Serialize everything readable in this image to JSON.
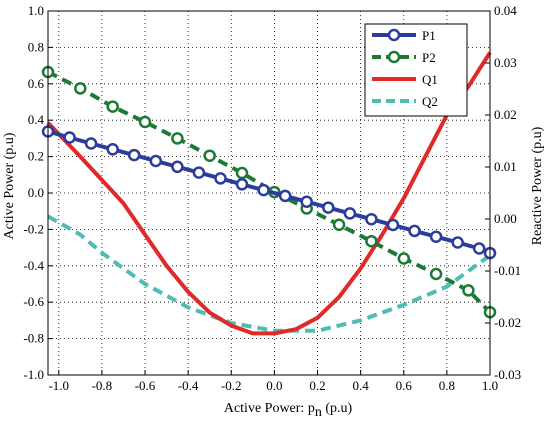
{
  "chart_data": {
    "type": "line",
    "xlabel": "Active Power: p",
    "xlabel_subscript": "n",
    "xlabel_unit": " (p.u)",
    "ylabel": "Active Power (p.u)",
    "y2label": "Reactive Power (p.u)",
    "xlim": [
      -1.05,
      1.0
    ],
    "ylim": [
      -1.0,
      1.0
    ],
    "y2lim": [
      -0.03,
      0.04
    ],
    "x_ticks": [
      -1.0,
      -0.8,
      -0.6,
      -0.4,
      -0.2,
      0.0,
      0.2,
      0.4,
      0.6,
      0.8,
      1.0
    ],
    "x_tick_labels": [
      "-1.0",
      "-0.8",
      "-0.6",
      "-0.4",
      "-0.2",
      "0.0",
      "0.2",
      "0.4",
      "0.6",
      "0.8",
      "1.0"
    ],
    "y_ticks": [
      -1.0,
      -0.8,
      -0.6,
      -0.4,
      -0.2,
      0.0,
      0.2,
      0.4,
      0.6,
      0.8,
      1.0
    ],
    "y_tick_labels": [
      "-1.0",
      "-0.8",
      "-0.6",
      "-0.4",
      "-0.2",
      "0.0",
      "0.2",
      "0.4",
      "0.6",
      "0.8",
      "1.0"
    ],
    "y2_ticks": [
      -0.03,
      -0.02,
      -0.01,
      0.0,
      0.01,
      0.02,
      0.03,
      0.04
    ],
    "y2_tick_labels": [
      "-0.03",
      "-0.02",
      "-0.01",
      "0.00",
      "0.01",
      "0.02",
      "0.03",
      "0.04"
    ],
    "grid": "dotted",
    "legend_position": "top-right",
    "series": [
      {
        "name": "P1",
        "axis": "left",
        "color": "#2b3d9c",
        "style": "solid",
        "marker": "circle",
        "x": [
          -1.05,
          -0.95,
          -0.85,
          -0.75,
          -0.65,
          -0.55,
          -0.45,
          -0.35,
          -0.25,
          -0.15,
          -0.05,
          0.05,
          0.15,
          0.25,
          0.35,
          0.45,
          0.55,
          0.65,
          0.75,
          0.85,
          0.95,
          1.0
        ],
        "y": [
          0.338,
          0.305,
          0.272,
          0.24,
          0.208,
          0.176,
          0.144,
          0.112,
          0.08,
          0.048,
          0.016,
          -0.016,
          -0.048,
          -0.08,
          -0.112,
          -0.144,
          -0.176,
          -0.208,
          -0.24,
          -0.272,
          -0.305,
          -0.33
        ]
      },
      {
        "name": "P2",
        "axis": "left",
        "color": "#1d7a35",
        "style": "dashed",
        "marker": "circle",
        "x": [
          -1.05,
          -0.9,
          -0.75,
          -0.6,
          -0.45,
          -0.3,
          -0.15,
          0.0,
          0.15,
          0.3,
          0.45,
          0.6,
          0.75,
          0.9,
          1.0
        ],
        "y": [
          0.665,
          0.575,
          0.475,
          0.39,
          0.3,
          0.205,
          0.11,
          0.005,
          -0.085,
          -0.175,
          -0.265,
          -0.36,
          -0.445,
          -0.535,
          -0.655
        ]
      },
      {
        "name": "Q1",
        "axis": "right",
        "color": "#e02a2a",
        "style": "solid",
        "marker": "none",
        "x": [
          -1.05,
          -0.9,
          -0.8,
          -0.7,
          -0.6,
          -0.5,
          -0.4,
          -0.3,
          -0.2,
          -0.1,
          0.0,
          0.1,
          0.2,
          0.3,
          0.4,
          0.5,
          0.6,
          0.7,
          0.8,
          0.9,
          1.0
        ],
        "y": [
          0.0185,
          0.012,
          0.0075,
          0.003,
          -0.003,
          -0.009,
          -0.014,
          -0.018,
          -0.0205,
          -0.022,
          -0.022,
          -0.0212,
          -0.019,
          -0.015,
          -0.0095,
          -0.003,
          0.004,
          0.012,
          0.02,
          0.0255,
          0.032
        ]
      },
      {
        "name": "Q2",
        "axis": "right",
        "color": "#4fbdb0",
        "style": "dashed",
        "marker": "none",
        "x": [
          -1.05,
          -0.9,
          -0.8,
          -0.6,
          -0.4,
          -0.2,
          0.0,
          0.2,
          0.4,
          0.6,
          0.8,
          0.9,
          1.0
        ],
        "y": [
          0.0005,
          -0.003,
          -0.0065,
          -0.0125,
          -0.017,
          -0.02,
          -0.0215,
          -0.0215,
          -0.0195,
          -0.0165,
          -0.013,
          -0.01,
          -0.007
        ]
      }
    ]
  }
}
